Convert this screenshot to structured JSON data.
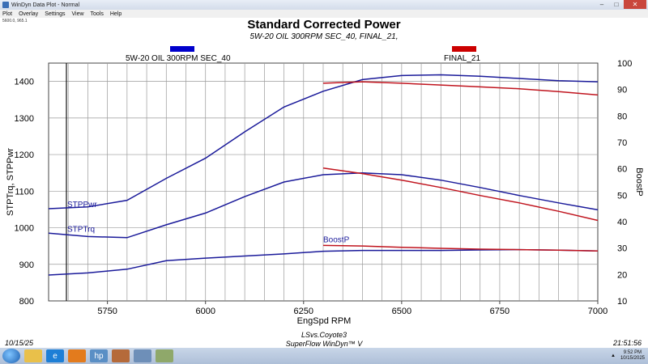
{
  "window": {
    "title": "WinDyn Data Plot - Normal",
    "menu": [
      "Plot",
      "Overlay",
      "Settings",
      "View",
      "Tools",
      "Help"
    ],
    "coord_readout": "5600.0, 965.1"
  },
  "footer": {
    "date": "10/15/25",
    "time": "21:51:56",
    "line1": "LSvs.Coyote3",
    "line2": "SuperFlow WinDyn™ V"
  },
  "taskbar": {
    "clock_time": "9:52 PM",
    "clock_date": "10/15/2025"
  },
  "chart_data": {
    "type": "line",
    "title": "Standard Corrected Power",
    "subtitle": "5W-20 OIL 300RPM SEC_40, FINAL_21,",
    "xlabel": "EngSpd RPM",
    "ylabel": "STPTrq, STPPwr",
    "ylabel_right": "BoostP",
    "xlim": [
      5600,
      7000
    ],
    "ylim": [
      800,
      1450
    ],
    "ylim_right": [
      10,
      100
    ],
    "x_ticks": [
      5750,
      6000,
      6250,
      6500,
      6750,
      7000
    ],
    "y_ticks": [
      800,
      900,
      1000,
      1100,
      1200,
      1300,
      1400
    ],
    "y_ticks_right": [
      10,
      20,
      30,
      40,
      50,
      60,
      70,
      80,
      90,
      100
    ],
    "grid": true,
    "legend": [
      {
        "name": "5W-20 OIL 300RPM SEC_40",
        "color": "#0000cc"
      },
      {
        "name": "FINAL_21",
        "color": "#cc0000"
      }
    ],
    "curve_labels": {
      "power": "STPPwr",
      "torque": "STPTrq",
      "boost": "BoostP"
    },
    "series": [
      {
        "run": "5W-20 OIL 300RPM SEC_40",
        "metric": "STPPwr",
        "axis": "left",
        "color": "#1a1a9a",
        "x": [
          5600,
          5700,
          5800,
          5900,
          6000,
          6100,
          6200,
          6300,
          6400,
          6500,
          6600,
          6700,
          6800,
          6900,
          7000
        ],
        "y": [
          1052,
          1057,
          1075,
          1135,
          1190,
          1262,
          1330,
          1373,
          1405,
          1416,
          1418,
          1414,
          1408,
          1402,
          1399
        ]
      },
      {
        "run": "5W-20 OIL 300RPM SEC_40",
        "metric": "STPTrq",
        "axis": "left",
        "color": "#1a1a9a",
        "x": [
          5600,
          5700,
          5800,
          5900,
          6000,
          6100,
          6200,
          6300,
          6400,
          6500,
          6600,
          6700,
          6800,
          6900,
          7000
        ],
        "y": [
          985,
          976,
          973,
          1008,
          1040,
          1085,
          1125,
          1145,
          1150,
          1145,
          1130,
          1110,
          1088,
          1068,
          1049
        ]
      },
      {
        "run": "5W-20 OIL 300RPM SEC_40",
        "metric": "BoostP",
        "axis": "right",
        "color": "#1a1a9a",
        "x": [
          5600,
          5700,
          5800,
          5900,
          6000,
          6100,
          6200,
          6300,
          6400,
          6500,
          6600,
          6700,
          6800,
          6900,
          7000
        ],
        "y": [
          19.8,
          20.6,
          22.0,
          25.2,
          26.2,
          27.0,
          27.8,
          28.8,
          29.1,
          29.1,
          29.1,
          29.3,
          29.4,
          29.2,
          28.9
        ]
      },
      {
        "run": "FINAL_21",
        "metric": "STPPwr",
        "axis": "left",
        "color": "#c0141e",
        "x": [
          6300,
          6400,
          6500,
          6600,
          6700,
          6800,
          6900,
          7000
        ],
        "y": [
          1395,
          1399,
          1395,
          1390,
          1385,
          1380,
          1372,
          1363
        ]
      },
      {
        "run": "FINAL_21",
        "metric": "STPTrq",
        "axis": "left",
        "color": "#c0141e",
        "x": [
          6300,
          6400,
          6500,
          6600,
          6700,
          6800,
          6900,
          7000
        ],
        "y": [
          1163,
          1148,
          1130,
          1110,
          1088,
          1068,
          1045,
          1020
        ]
      },
      {
        "run": "FINAL_21",
        "metric": "BoostP",
        "axis": "right",
        "color": "#c0141e",
        "x": [
          6300,
          6400,
          6500,
          6600,
          6700,
          6800,
          6900,
          7000
        ],
        "y": [
          31.0,
          30.8,
          30.3,
          29.9,
          29.6,
          29.4,
          29.2,
          28.9
        ]
      }
    ]
  }
}
